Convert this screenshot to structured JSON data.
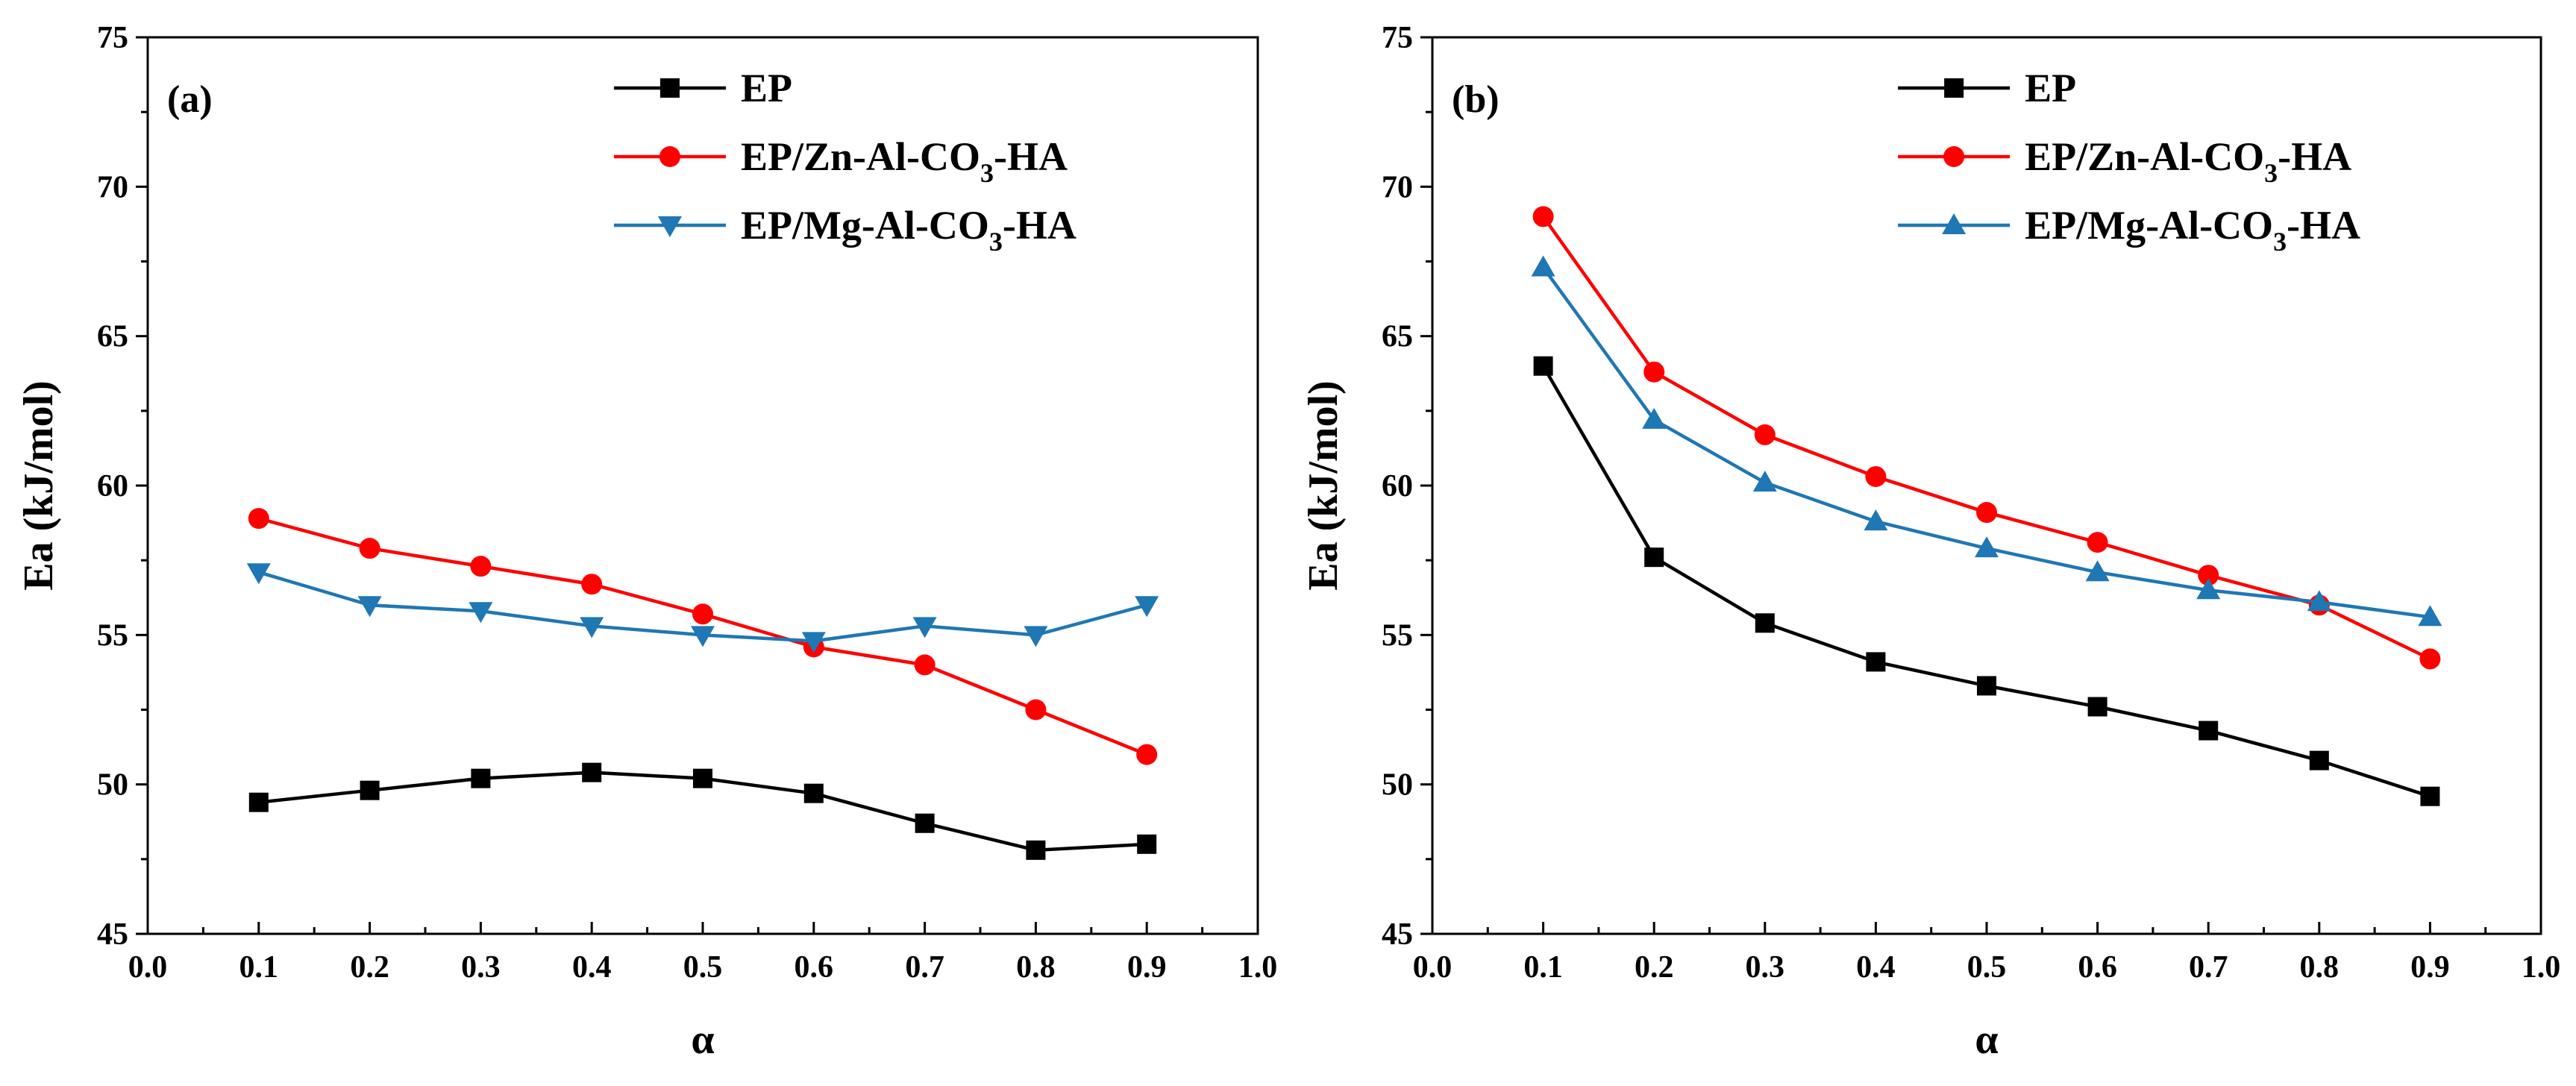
{
  "chart_data": [
    {
      "type": "line",
      "panel_label": "(a)",
      "xlabel": "α",
      "ylabel": "Ea (kJ/mol)",
      "xlim": [
        0.0,
        1.0
      ],
      "ylim": [
        45,
        75
      ],
      "xticks": [
        "0.0",
        "0.1",
        "0.2",
        "0.3",
        "0.4",
        "0.5",
        "0.6",
        "0.7",
        "0.8",
        "0.9",
        "1.0"
      ],
      "yticks": [
        "45",
        "50",
        "55",
        "60",
        "65",
        "70",
        "75"
      ],
      "legend_position": "top-right",
      "x": [
        0.1,
        0.2,
        0.3,
        0.4,
        0.5,
        0.6,
        0.7,
        0.8,
        0.9
      ],
      "series": [
        {
          "name": "EP",
          "label_main": "EP",
          "label_sub": "",
          "label_tail": "",
          "color": "#000000",
          "marker": "square",
          "values": [
            49.4,
            49.8,
            50.2,
            50.4,
            50.2,
            49.7,
            48.7,
            47.8,
            48.0
          ]
        },
        {
          "name": "EP/Zn-Al-CO3-HA",
          "label_main": "EP/Zn-Al-CO",
          "label_sub": "3",
          "label_tail": "-HA",
          "color": "#ff0000",
          "marker": "circle",
          "values": [
            58.9,
            57.9,
            57.3,
            56.7,
            55.7,
            54.6,
            54.0,
            52.5,
            51.0
          ]
        },
        {
          "name": "EP/Mg-Al-CO3-HA",
          "label_main": "EP/Mg-Al-CO",
          "label_sub": "3",
          "label_tail": "-HA",
          "color": "#1f77b4",
          "marker": "triangle-down",
          "values": [
            57.1,
            56.0,
            55.8,
            55.3,
            55.0,
            54.8,
            55.3,
            55.0,
            56.0
          ]
        }
      ]
    },
    {
      "type": "line",
      "panel_label": "(b)",
      "xlabel": "α",
      "ylabel": "Ea (kJ/mol)",
      "xlim": [
        0.0,
        1.0
      ],
      "ylim": [
        45,
        75
      ],
      "xticks": [
        "0.0",
        "0.1",
        "0.2",
        "0.3",
        "0.4",
        "0.5",
        "0.6",
        "0.7",
        "0.8",
        "0.9",
        "1.0"
      ],
      "yticks": [
        "45",
        "50",
        "55",
        "60",
        "65",
        "70",
        "75"
      ],
      "legend_position": "top-right",
      "x": [
        0.1,
        0.2,
        0.3,
        0.4,
        0.5,
        0.6,
        0.7,
        0.8,
        0.9
      ],
      "series": [
        {
          "name": "EP",
          "label_main": "EP",
          "label_sub": "",
          "label_tail": "",
          "color": "#000000",
          "marker": "square",
          "values": [
            64.0,
            57.6,
            55.4,
            54.1,
            53.3,
            52.6,
            51.8,
            50.8,
            49.6
          ]
        },
        {
          "name": "EP/Zn-Al-CO3-HA",
          "label_main": "EP/Zn-Al-CO",
          "label_sub": "3",
          "label_tail": "-HA",
          "color": "#ff0000",
          "marker": "circle",
          "values": [
            69.0,
            63.8,
            61.7,
            60.3,
            59.1,
            58.1,
            57.0,
            56.0,
            54.2
          ]
        },
        {
          "name": "EP/Mg-Al-CO3-HA",
          "label_main": "EP/Mg-Al-CO",
          "label_sub": "3",
          "label_tail": "-HA",
          "color": "#1f77b4",
          "marker": "triangle-up",
          "values": [
            67.3,
            62.2,
            60.1,
            58.8,
            57.9,
            57.1,
            56.5,
            56.1,
            55.6
          ]
        }
      ]
    }
  ]
}
